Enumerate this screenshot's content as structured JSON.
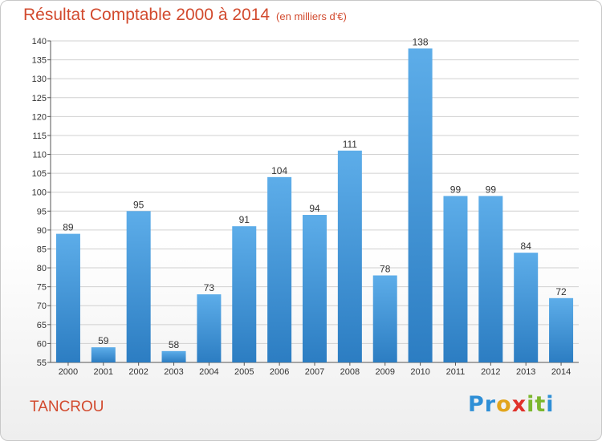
{
  "title": "Résultat Comptable 2000 à 2014",
  "subtitle": "(en milliers d'€)",
  "commune": "TANCROU",
  "logo": {
    "letters": [
      "P",
      "r",
      "o",
      "x",
      "i",
      "t",
      "i"
    ],
    "colors": [
      "#2f8fd6",
      "#2f8fd6",
      "#e2a51c",
      "#e0312a",
      "#7cb72e",
      "#7cb72e",
      "#2f8fd6"
    ]
  },
  "colors": {
    "bar_light": "#5dade9",
    "bar_dark": "#2c7dc2",
    "title": "#d24a2e",
    "grid": "#d0d0d0"
  },
  "chart_data": {
    "type": "bar",
    "title": "Résultat Comptable 2000 à 2014",
    "subtitle": "(en milliers d'€)",
    "categories": [
      "2000",
      "2001",
      "2002",
      "2003",
      "2004",
      "2005",
      "2006",
      "2007",
      "2008",
      "2009",
      "2010",
      "2011",
      "2012",
      "2013",
      "2014"
    ],
    "values": [
      89,
      59,
      95,
      58,
      73,
      91,
      104,
      94,
      111,
      78,
      138,
      99,
      99,
      84,
      72
    ],
    "ylim": [
      55,
      140
    ],
    "ytick_step": 5,
    "grid": true,
    "xlabel": "",
    "ylabel": ""
  }
}
